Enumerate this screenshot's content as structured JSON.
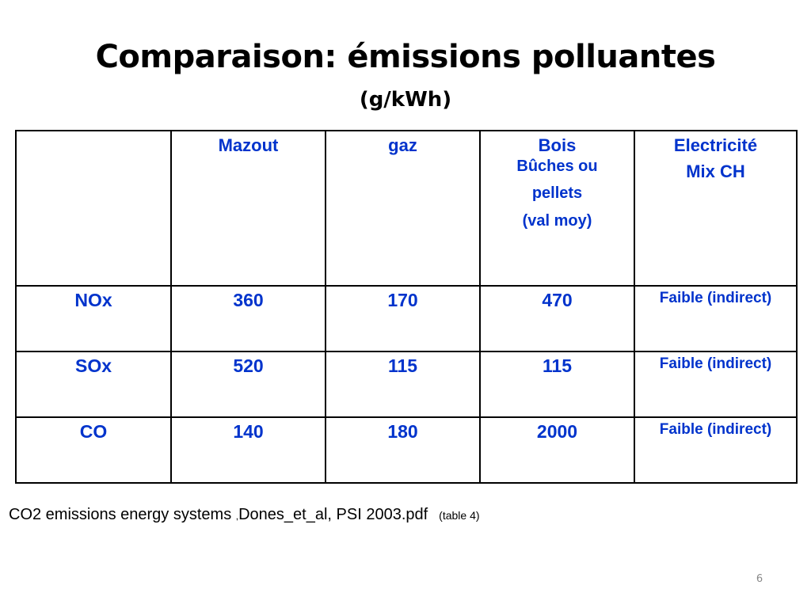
{
  "slide": {
    "title": "Comparaison: émissions polluantes",
    "subtitle": "(g/kWh)",
    "page_number": "6"
  },
  "table": {
    "corner": "",
    "columns": [
      {
        "label": "Mazout"
      },
      {
        "label": "gaz"
      },
      {
        "label": "Bois",
        "sub_lines": [
          "Bûches ou",
          "pellets",
          "(val moy)"
        ]
      },
      {
        "label": "Electricité",
        "sub_lines": [
          "Mix CH"
        ]
      }
    ],
    "rows": [
      {
        "label": "NOx",
        "values": [
          "360",
          "170",
          "470",
          "Faible (indirect)"
        ]
      },
      {
        "label": "SOx",
        "values": [
          "520",
          "115",
          "115",
          "Faible (indirect)"
        ]
      },
      {
        "label": "CO",
        "values": [
          "140",
          "180",
          "2000",
          "Faible (indirect)"
        ]
      }
    ]
  },
  "source": {
    "text_before": "CO2 emissions energy systems ",
    "comma": ",",
    "text_after": "Dones_et_al, PSI 2003.pdf",
    "table_ref": "(table 4)"
  },
  "colors": {
    "table_text": "#0033cc",
    "border": "#000000",
    "page_number": "#888888"
  }
}
